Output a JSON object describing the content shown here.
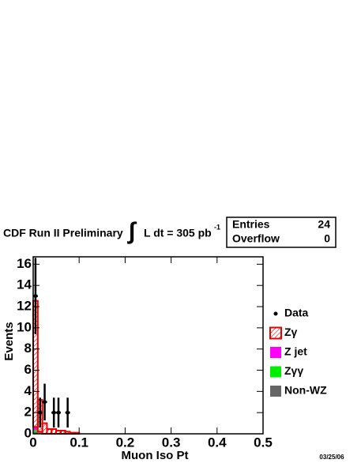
{
  "chart_data": {
    "type": "histogram",
    "title": "CDF Run II Preliminary",
    "luminosity": {
      "integral": "∫",
      "text": "L dt = 305 pb",
      "superscript": "-1"
    },
    "stats": {
      "rows": [
        [
          "Entries",
          24
        ],
        [
          "Overflow",
          0
        ]
      ]
    },
    "xlabel": "Muon Iso Pt",
    "ylabel": "Events",
    "date": "03/25/06",
    "xlim": [
      0,
      0.5
    ],
    "xticks": [
      0,
      0.1,
      0.2,
      0.3,
      0.4,
      0.5
    ],
    "ylim": [
      0,
      16.7
    ],
    "yticks": [
      0,
      2,
      4,
      6,
      8,
      10,
      12,
      14,
      16
    ],
    "bins": [
      0,
      0.01,
      0.02,
      0.03,
      0.04,
      0.05,
      0.06,
      0.07,
      0.08,
      0.09,
      0.1,
      0.11,
      0.12,
      0.13,
      0.14,
      0.15,
      0.16,
      0.17,
      0.18,
      0.19,
      0.2,
      0.21,
      0.22,
      0.23,
      0.24,
      0.25,
      0.26,
      0.27,
      0.28,
      0.29,
      0.3,
      0.31,
      0.32,
      0.33,
      0.34,
      0.35,
      0.36,
      0.37,
      0.38,
      0.39,
      0.4,
      0.41,
      0.42,
      0.43,
      0.44,
      0.45,
      0.46,
      0.47,
      0.48,
      0.49,
      0.5
    ],
    "series": [
      {
        "name": "Non-WZ",
        "color": "#666666",
        "values": [
          0.15,
          0.05,
          0,
          0,
          0,
          0,
          0,
          0,
          0,
          0,
          0,
          0,
          0,
          0,
          0,
          0,
          0,
          0,
          0,
          0,
          0,
          0,
          0,
          0,
          0,
          0,
          0,
          0,
          0,
          0,
          0,
          0,
          0,
          0,
          0,
          0,
          0,
          0,
          0,
          0,
          0,
          0,
          0,
          0,
          0,
          0,
          0,
          0,
          0,
          0
        ]
      },
      {
        "name": "Zγγ",
        "color": "#00ee00",
        "values": [
          0.2,
          0.05,
          0,
          0,
          0,
          0,
          0,
          0,
          0,
          0,
          0,
          0,
          0,
          0,
          0,
          0,
          0,
          0,
          0,
          0,
          0,
          0,
          0,
          0,
          0,
          0,
          0,
          0,
          0,
          0,
          0,
          0,
          0,
          0,
          0,
          0,
          0,
          0,
          0,
          0,
          0,
          0,
          0,
          0,
          0,
          0,
          0,
          0,
          0,
          0
        ]
      },
      {
        "name": "Z jet",
        "color": "#ff00ff",
        "values": [
          0.3,
          0.1,
          0,
          0,
          0,
          0,
          0,
          0,
          0,
          0,
          0,
          0,
          0,
          0,
          0,
          0,
          0,
          0,
          0,
          0,
          0,
          0,
          0,
          0,
          0,
          0,
          0,
          0,
          0,
          0,
          0,
          0,
          0,
          0,
          0,
          0,
          0,
          0,
          0,
          0,
          0,
          0,
          0,
          0,
          0,
          0,
          0,
          0,
          0,
          0
        ]
      },
      {
        "name": "Zγ",
        "color": "#ee0000",
        "hatched": true,
        "values": [
          11.9,
          3.0,
          1.0,
          0.45,
          0.45,
          0.3,
          0.3,
          0.2,
          0.1,
          0.1,
          0,
          0,
          0,
          0,
          0,
          0,
          0,
          0,
          0,
          0,
          0,
          0,
          0,
          0,
          0,
          0,
          0,
          0,
          0,
          0,
          0,
          0,
          0,
          0,
          0,
          0,
          0,
          0,
          0,
          0,
          0,
          0,
          0,
          0,
          0,
          0,
          0,
          0,
          0,
          0
        ]
      }
    ],
    "data": {
      "name": "Data",
      "color": "#000000",
      "x": [
        0.005,
        0.015,
        0.025,
        0.045,
        0.055,
        0.075
      ],
      "values": [
        13,
        2,
        3,
        2,
        2,
        2
      ],
      "errors": [
        3.6,
        1.41,
        1.73,
        1.41,
        1.41,
        1.41
      ]
    }
  }
}
